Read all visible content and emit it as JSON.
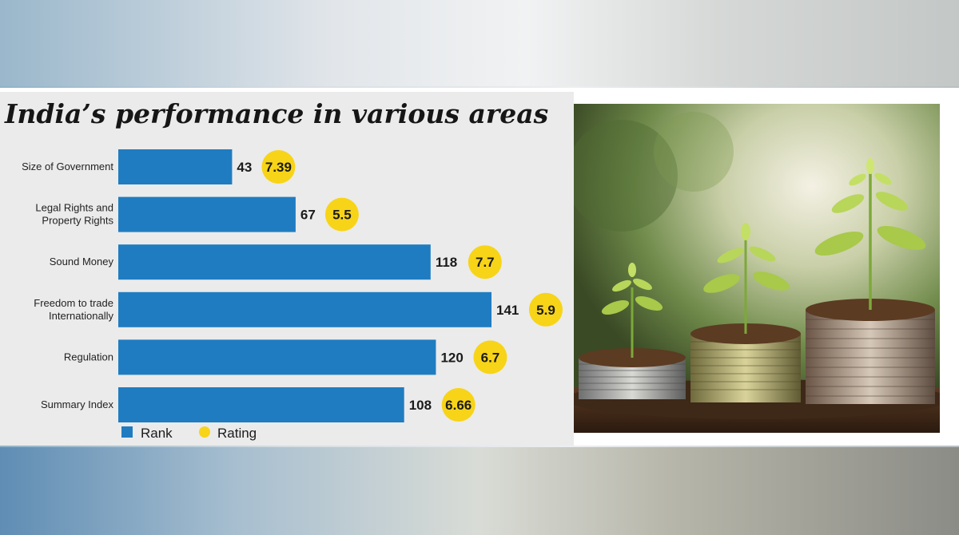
{
  "chart_data": {
    "type": "bar",
    "title": "India’s performance in various areas",
    "categories": [
      [
        "Size of Government"
      ],
      [
        "Legal Rights and",
        "Property Rights"
      ],
      [
        "Sound Money"
      ],
      [
        "Freedom to trade",
        "Internationally"
      ],
      [
        "Regulation"
      ],
      [
        "Summary Index"
      ]
    ],
    "series": [
      {
        "name": "Rank",
        "values": [
          43,
          67,
          118,
          141,
          120,
          108
        ],
        "color": "#1f7cc1"
      },
      {
        "name": "Rating",
        "values": [
          "7.39",
          "5.5",
          "7.7",
          "5.9",
          "6.7",
          "6.66"
        ],
        "color": "#f7d417"
      }
    ],
    "orientation": "horizontal",
    "xlim": [
      0,
      141
    ],
    "grid": false,
    "legend": "bottom-left"
  },
  "image": {
    "subject": "coins-with-seedlings-photo"
  }
}
